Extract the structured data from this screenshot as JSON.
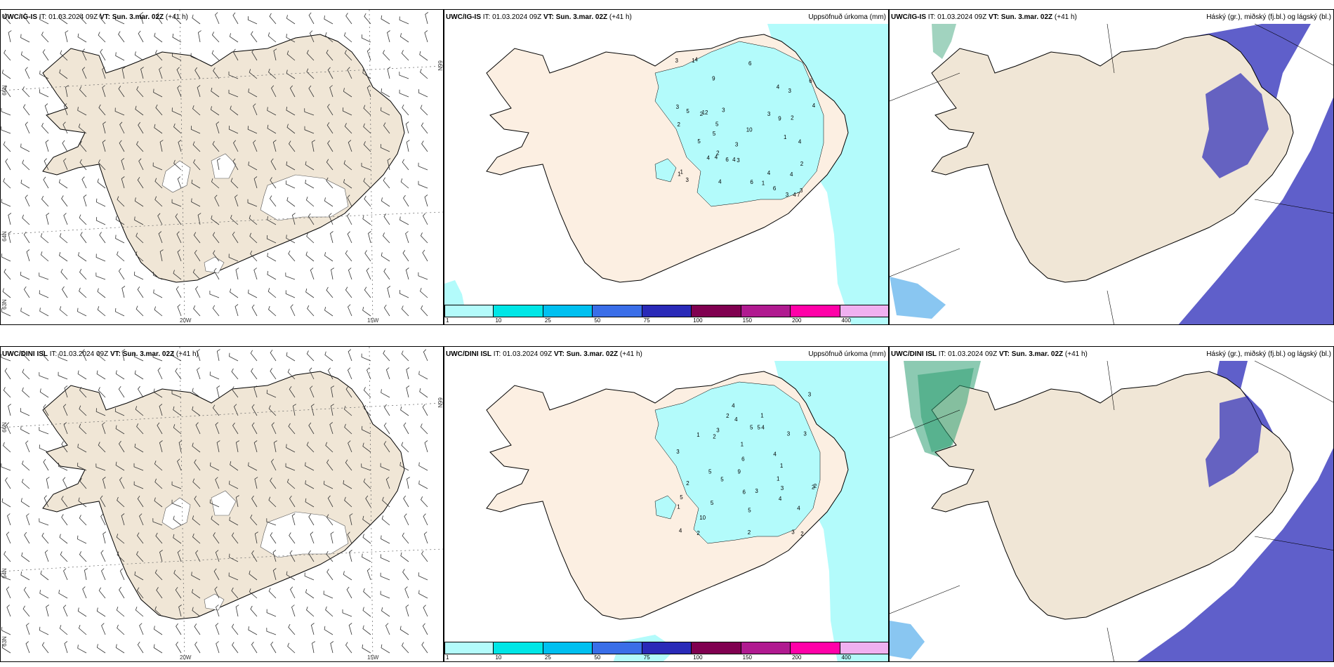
{
  "rows": [
    {
      "model": "UWC/IG-IS",
      "it_label": "IT:",
      "it_value": "01.03.2024 09Z",
      "vt_label": "VT:",
      "vt_value": "Sun. 3.mar. 02Z",
      "lead": "(+41 h)"
    },
    {
      "model": "UWC/DINI ISL",
      "it_label": "IT:",
      "it_value": "01.03.2024 09Z",
      "vt_label": "VT:",
      "vt_value": "Sun. 3.mar. 02Z",
      "lead": "(+41 h)"
    }
  ],
  "panel_titles": {
    "precip": "Uppsöfnuð úrkoma (mm)",
    "clouds": "Háský (gr.), miðský (fj.bl.) og lágský (bl.)"
  },
  "graticule": {
    "lon": [
      "20W",
      "15W"
    ],
    "lat": [
      "66N",
      "64N",
      "65N"
    ],
    "lat_alt": [
      "63N"
    ]
  },
  "colorbar": {
    "ticks": [
      "1",
      "10",
      "25",
      "50",
      "75",
      "100",
      "150",
      "200",
      "400"
    ],
    "colors": [
      "#b3fbfb",
      "#00e6e6",
      "#00c0f0",
      "#3a6ee8",
      "#2a2ab8",
      "#800050",
      "#b01a90",
      "#ff00a8",
      "#f0b0f0"
    ]
  },
  "colors": {
    "land": "#f0e6d6",
    "glacier": "#ffffff",
    "precip_light": "#b3fbfb",
    "high_cloud": "#2e9e72",
    "mid_cloud": "#2a2ab8",
    "low_cloud": "#3aa0e8"
  },
  "precip_labels_top": [
    "3",
    "2",
    "1",
    "1",
    "7",
    "9",
    "4",
    "5",
    "4",
    "9",
    "2",
    "6",
    "3",
    "3",
    "5",
    "4",
    "10",
    "4",
    "6",
    "3",
    "4",
    "12",
    "1",
    "4",
    "4",
    "3",
    "6",
    "1",
    "3",
    "1",
    "2",
    "6",
    "3",
    "2",
    "4",
    "3",
    "5",
    "4",
    "5",
    "4",
    "2",
    "3",
    "4",
    "6",
    "3"
  ],
  "precip_labels_bottom": [
    "1",
    "2",
    "3",
    "2",
    "1",
    "9",
    "5",
    "6",
    "3",
    "5",
    "4",
    "1",
    "1",
    "3",
    "4",
    "4",
    "3",
    "10",
    "2",
    "3",
    "5",
    "4",
    "3",
    "2",
    "1",
    "4",
    "6",
    "3",
    "2",
    "3",
    "5",
    "5",
    "4",
    "5",
    "1",
    "4",
    "2",
    "5",
    "2",
    "2"
  ]
}
